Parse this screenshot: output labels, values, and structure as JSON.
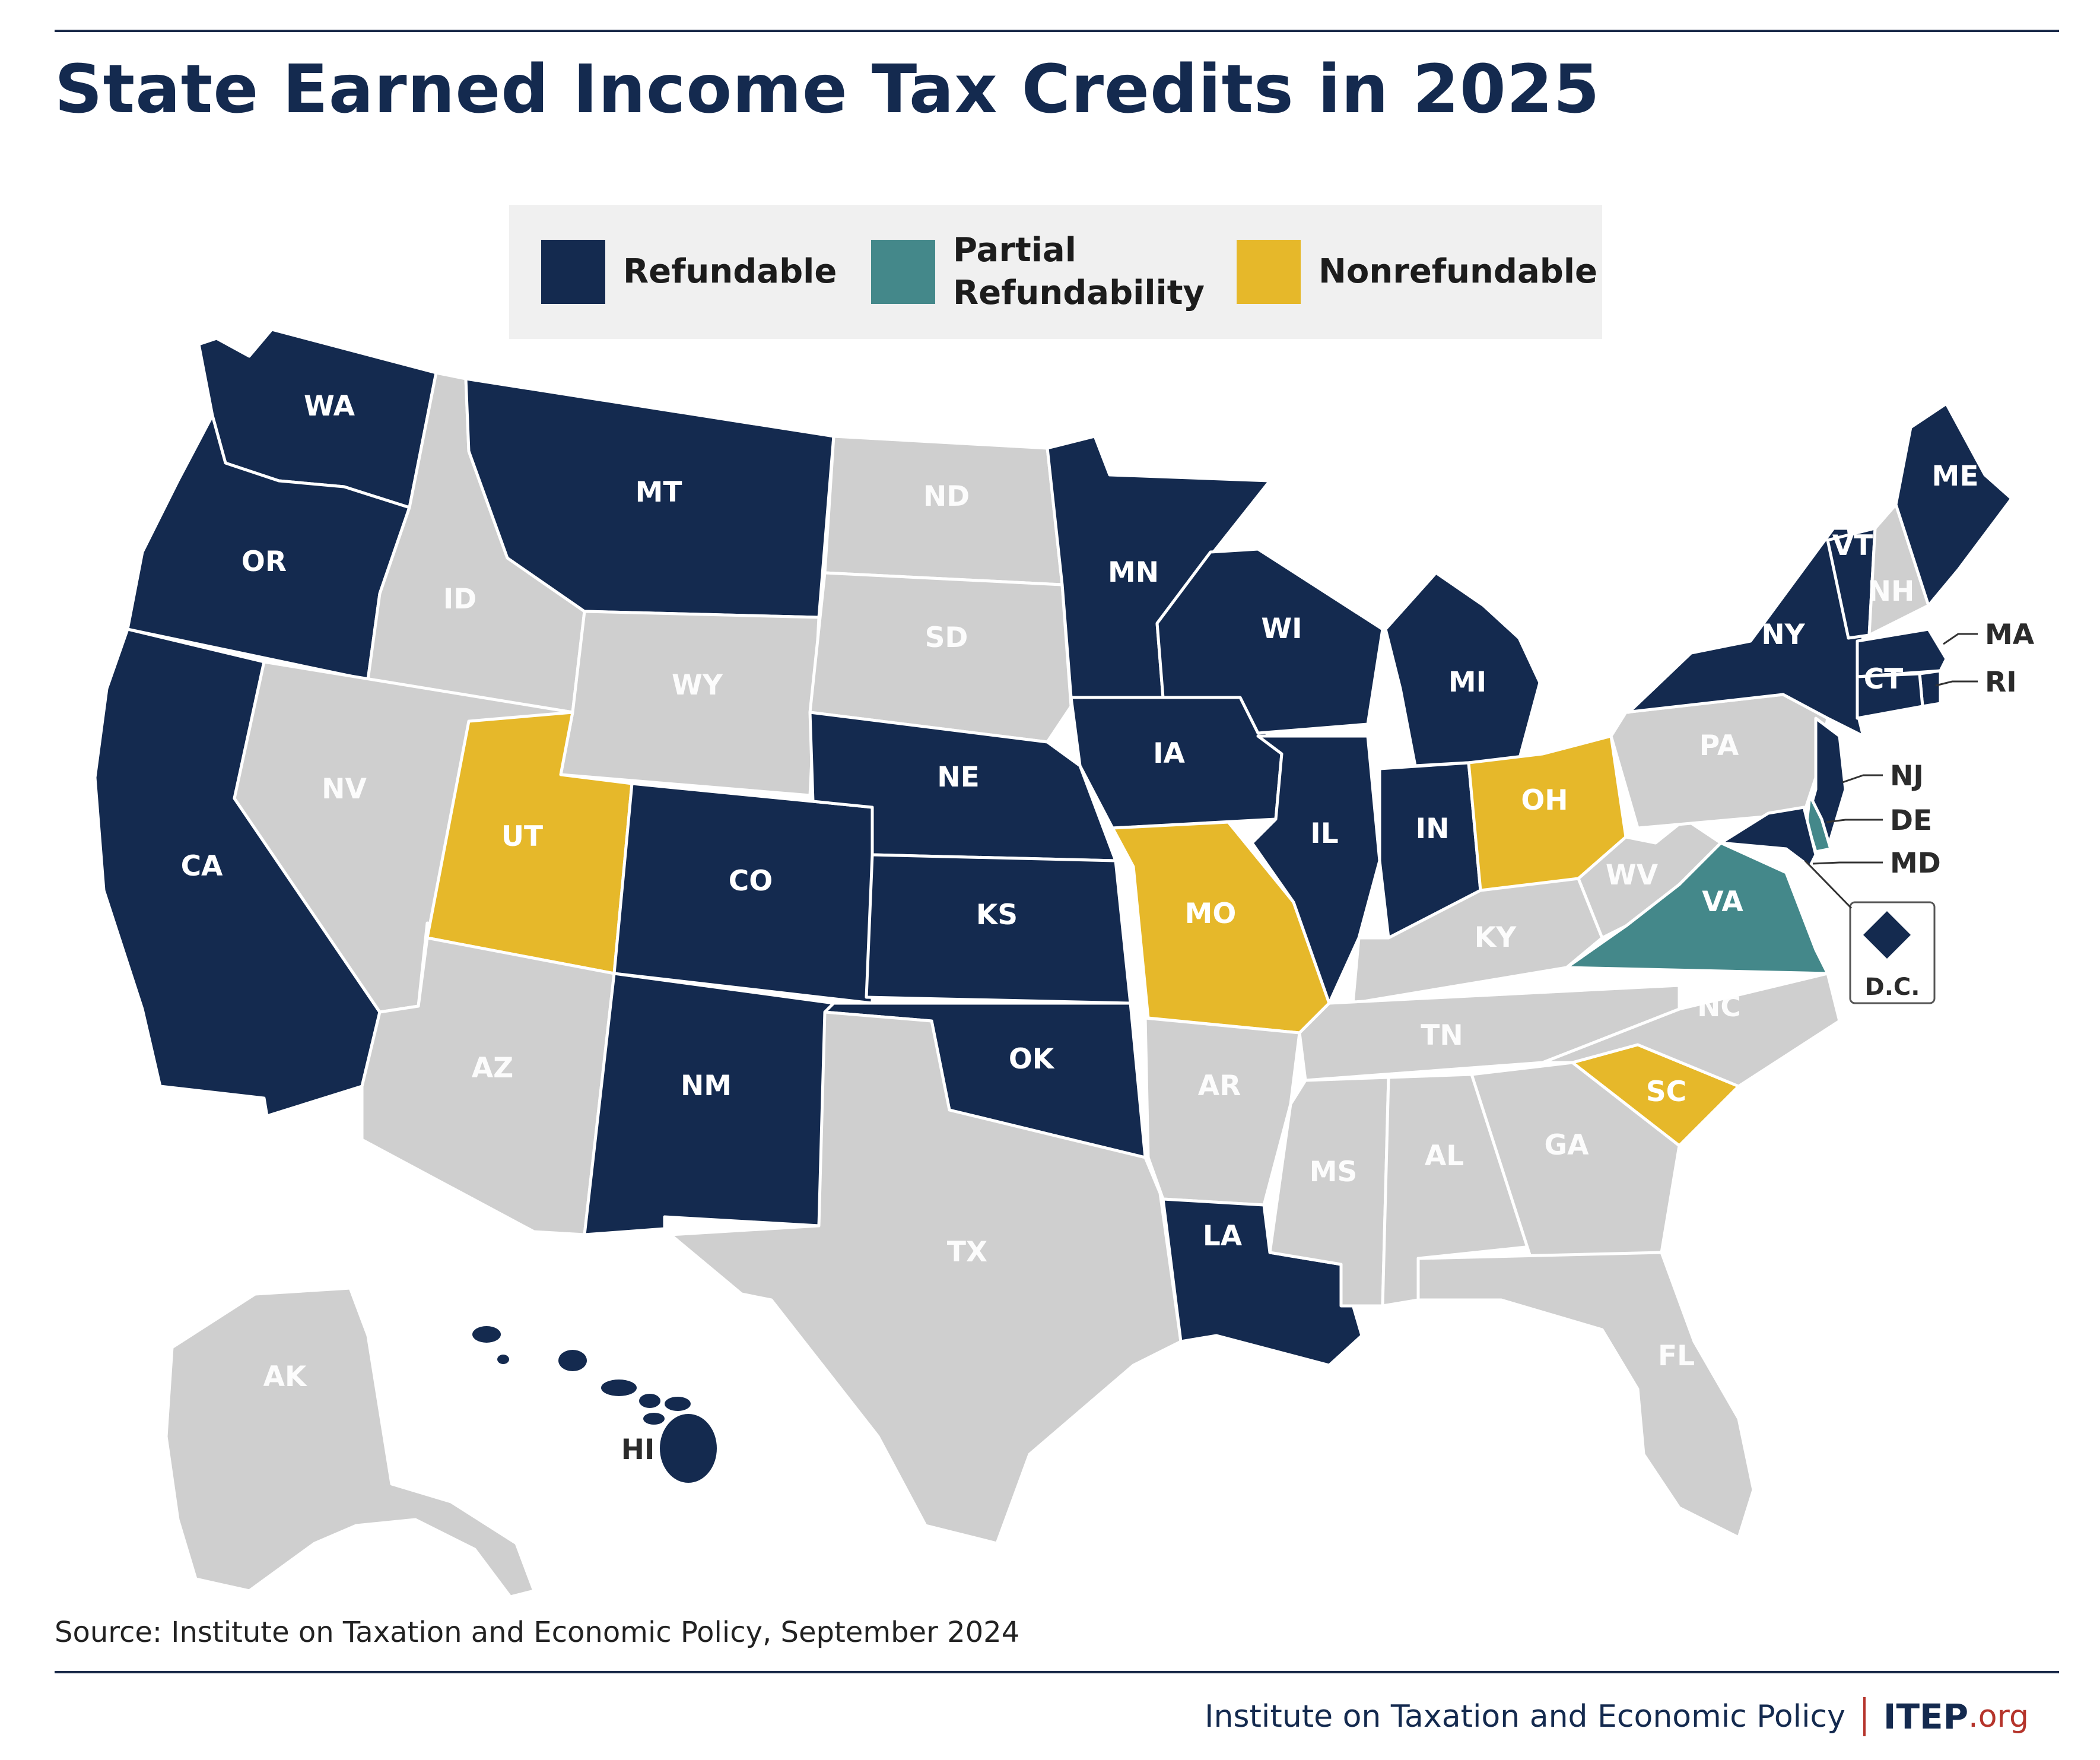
{
  "title": "State Earned Income Tax Credits in 2025",
  "colors": {
    "refundable": "#142a4f",
    "partial": "#44888a",
    "nonrefundable": "#e6b82a",
    "none": "#cfcfcf",
    "border": "#ffffff",
    "label_dark": "#2b2b2b",
    "label_light": "#ffffff"
  },
  "legend": {
    "refundable": "Refundable",
    "partial_line1": "Partial",
    "partial_line2": "Refundability",
    "nonrefundable": "Nonrefundable"
  },
  "states": [
    {
      "abbr": "WA",
      "category": "refundable"
    },
    {
      "abbr": "OR",
      "category": "refundable"
    },
    {
      "abbr": "CA",
      "category": "refundable"
    },
    {
      "abbr": "ID",
      "category": "none"
    },
    {
      "abbr": "NV",
      "category": "none"
    },
    {
      "abbr": "MT",
      "category": "refundable"
    },
    {
      "abbr": "WY",
      "category": "none"
    },
    {
      "abbr": "UT",
      "category": "nonrefundable"
    },
    {
      "abbr": "AZ",
      "category": "none"
    },
    {
      "abbr": "CO",
      "category": "refundable"
    },
    {
      "abbr": "NM",
      "category": "refundable"
    },
    {
      "abbr": "ND",
      "category": "none"
    },
    {
      "abbr": "SD",
      "category": "none"
    },
    {
      "abbr": "NE",
      "category": "refundable"
    },
    {
      "abbr": "KS",
      "category": "refundable"
    },
    {
      "abbr": "OK",
      "category": "refundable"
    },
    {
      "abbr": "TX",
      "category": "none"
    },
    {
      "abbr": "MN",
      "category": "refundable"
    },
    {
      "abbr": "IA",
      "category": "refundable"
    },
    {
      "abbr": "MO",
      "category": "nonrefundable"
    },
    {
      "abbr": "AR",
      "category": "none"
    },
    {
      "abbr": "LA",
      "category": "refundable"
    },
    {
      "abbr": "WI",
      "category": "refundable"
    },
    {
      "abbr": "IL",
      "category": "refundable"
    },
    {
      "abbr": "MI",
      "category": "refundable"
    },
    {
      "abbr": "IN",
      "category": "refundable"
    },
    {
      "abbr": "OH",
      "category": "nonrefundable"
    },
    {
      "abbr": "KY",
      "category": "none"
    },
    {
      "abbr": "TN",
      "category": "none"
    },
    {
      "abbr": "MS",
      "category": "none"
    },
    {
      "abbr": "AL",
      "category": "none"
    },
    {
      "abbr": "GA",
      "category": "none"
    },
    {
      "abbr": "FL",
      "category": "none"
    },
    {
      "abbr": "SC",
      "category": "nonrefundable"
    },
    {
      "abbr": "NC",
      "category": "none"
    },
    {
      "abbr": "VA",
      "category": "partial"
    },
    {
      "abbr": "WV",
      "category": "none"
    },
    {
      "abbr": "PA",
      "category": "none"
    },
    {
      "abbr": "NY",
      "category": "refundable"
    },
    {
      "abbr": "VT",
      "category": "refundable"
    },
    {
      "abbr": "NH",
      "category": "none"
    },
    {
      "abbr": "ME",
      "category": "refundable"
    },
    {
      "abbr": "MA",
      "category": "refundable"
    },
    {
      "abbr": "RI",
      "category": "refundable"
    },
    {
      "abbr": "CT",
      "category": "refundable"
    },
    {
      "abbr": "NJ",
      "category": "refundable"
    },
    {
      "abbr": "DE",
      "category": "partial"
    },
    {
      "abbr": "MD",
      "category": "refundable"
    },
    {
      "abbr": "DC",
      "label": "D.C.",
      "category": "refundable"
    },
    {
      "abbr": "AK",
      "category": "none"
    },
    {
      "abbr": "HI",
      "category": "refundable"
    }
  ],
  "source": "Source: Institute on Taxation and Economic Policy, September 2024",
  "footer": {
    "org_name": "Institute on Taxation and Economic Policy",
    "brand_main": "ITEP",
    "brand_suffix": ".org"
  }
}
